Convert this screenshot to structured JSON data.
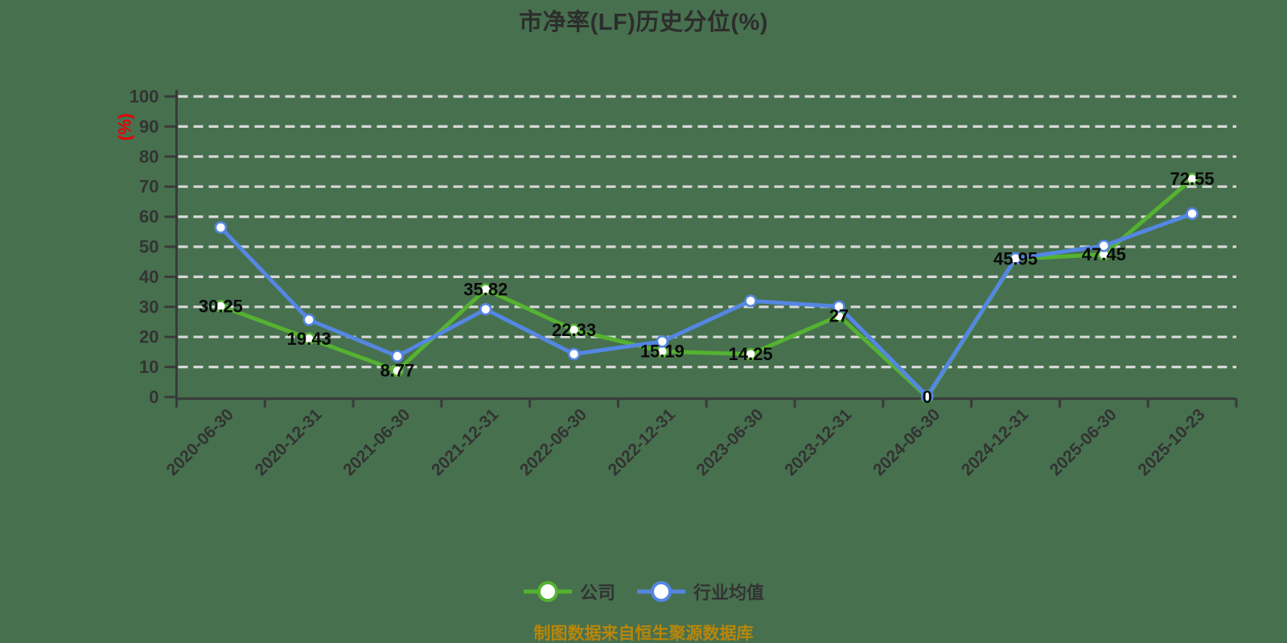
{
  "footer": {
    "text": "制图数据来自恒生聚源数据库"
  },
  "colors": {
    "background": "#47704F",
    "grid": "#D8D8D8",
    "axis": "#3A3A3A",
    "tick_label": "#333333",
    "title": "#2D2D2D",
    "data_label": "#0A0A0A",
    "ylabel_red": "#E60000",
    "footer_gold": "#B8860B",
    "company_green": "#55B231",
    "industry_blue": "#5486E2",
    "marker_fill": "#FFFFFF"
  },
  "chart_data": {
    "type": "line",
    "title": "市净率(LF)历史分位(%)",
    "xlabel": "",
    "ylabel": "(%)",
    "ylim": [
      0,
      100
    ],
    "yticks": [
      0,
      10,
      20,
      30,
      40,
      50,
      60,
      70,
      80,
      90,
      100
    ],
    "grid": "horizontal-dashed-white",
    "legend_position": "bottom",
    "categories": [
      "2020-06-30",
      "2020-12-31",
      "2021-06-30",
      "2021-12-31",
      "2022-06-30",
      "2022-12-31",
      "2023-06-30",
      "2023-12-31",
      "2024-06-30",
      "2024-12-31",
      "2025-06-30",
      "2025-10-23"
    ],
    "series": [
      {
        "name": "公司",
        "color": "#55B231",
        "values": [
          30.25,
          19.43,
          8.77,
          35.82,
          22.33,
          15.19,
          14.25,
          27,
          0,
          45.95,
          47.45,
          72.55
        ],
        "labels": [
          "30.25",
          "19.43",
          "8.77",
          "35.82",
          "22.33",
          "15.19",
          "14.25",
          "27",
          "0",
          "45.95",
          "47.45",
          "72.55"
        ]
      },
      {
        "name": "行业均值",
        "color": "#5486E2",
        "values": [
          56.4,
          25.7,
          13.6,
          29.2,
          14.3,
          18.5,
          32.0,
          30.1,
          0.3,
          46.1,
          50.3,
          61.0
        ]
      }
    ]
  }
}
